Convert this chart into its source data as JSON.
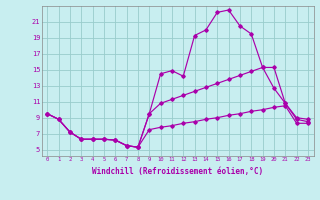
{
  "xlabel": "Windchill (Refroidissement éolien,°C)",
  "bg_color": "#c8eef0",
  "line_color": "#aa00aa",
  "grid_color": "#99cccc",
  "xlim_min": -0.5,
  "xlim_max": 23.5,
  "ylim_min": 4.2,
  "ylim_max": 23.0,
  "yticks": [
    5,
    7,
    9,
    11,
    13,
    15,
    17,
    19,
    21
  ],
  "xticks": [
    0,
    1,
    2,
    3,
    4,
    5,
    6,
    7,
    8,
    9,
    10,
    11,
    12,
    13,
    14,
    15,
    16,
    17,
    18,
    19,
    20,
    21,
    22,
    23
  ],
  "upper_x": [
    0,
    1,
    2,
    3,
    4,
    5,
    6,
    7,
    8,
    9,
    10,
    11,
    12,
    13,
    14,
    15,
    16,
    17,
    18,
    19,
    20,
    21,
    22,
    23
  ],
  "upper_y": [
    9.5,
    8.8,
    7.2,
    6.3,
    6.3,
    6.3,
    6.2,
    5.5,
    5.3,
    9.5,
    14.5,
    14.9,
    14.2,
    19.3,
    20.0,
    22.2,
    22.5,
    20.5,
    19.5,
    15.3,
    15.3,
    10.8,
    9.0,
    8.8
  ],
  "mid_x": [
    0,
    1,
    2,
    3,
    4,
    5,
    6,
    7,
    8,
    9,
    10,
    11,
    12,
    13,
    14,
    15,
    16,
    17,
    18,
    19,
    20,
    21,
    22,
    23
  ],
  "mid_y": [
    9.5,
    8.8,
    7.2,
    6.3,
    6.3,
    6.3,
    6.2,
    5.5,
    5.3,
    9.5,
    10.8,
    11.3,
    11.8,
    12.3,
    12.8,
    13.3,
    13.8,
    14.3,
    14.8,
    15.3,
    12.7,
    10.8,
    8.8,
    8.5
  ],
  "low_x": [
    0,
    1,
    2,
    3,
    4,
    5,
    6,
    7,
    8,
    9,
    10,
    11,
    12,
    13,
    14,
    15,
    16,
    17,
    18,
    19,
    20,
    21,
    22,
    23
  ],
  "low_y": [
    9.5,
    8.8,
    7.2,
    6.3,
    6.3,
    6.3,
    6.2,
    5.5,
    5.3,
    7.5,
    7.8,
    8.0,
    8.3,
    8.5,
    8.8,
    9.0,
    9.3,
    9.5,
    9.8,
    10.0,
    10.3,
    10.5,
    8.3,
    8.3
  ]
}
